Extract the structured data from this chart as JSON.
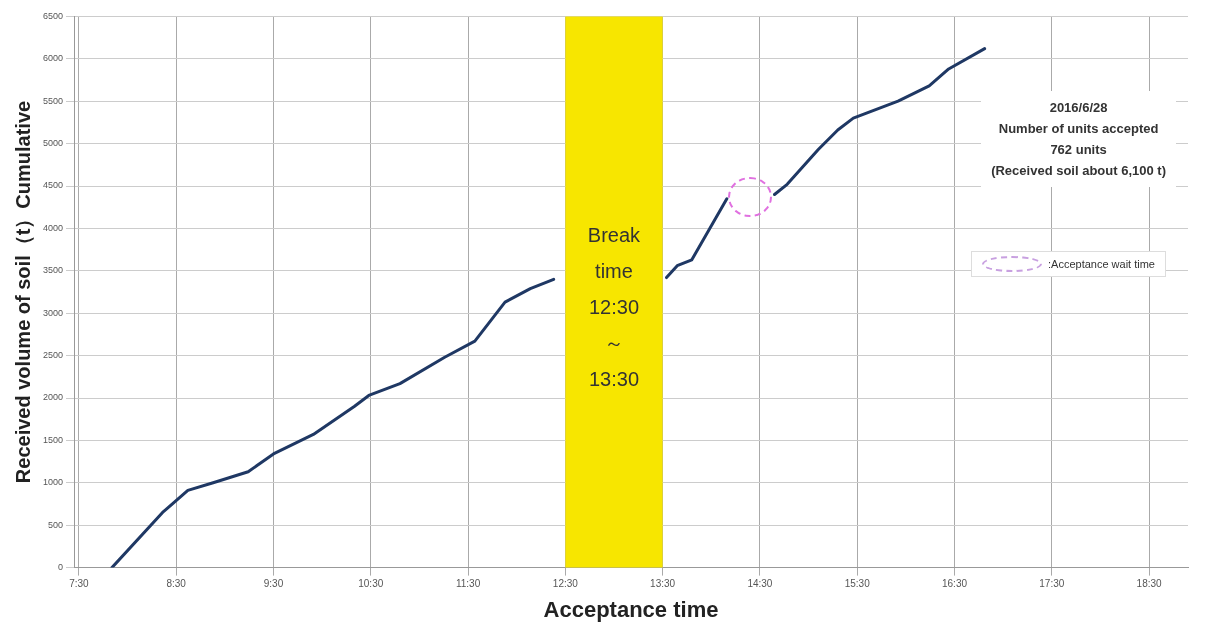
{
  "chart_data": {
    "type": "line",
    "xlabel": "Acceptance time",
    "ylabel": "Received volume of soil（t）Cumulative",
    "x": [
      7.84,
      8.36,
      8.62,
      8.88,
      9.24,
      9.5,
      9.91,
      10.33,
      10.48,
      10.8,
      11.26,
      11.57,
      11.88,
      12.14,
      12.38,
      12.45,
      13.54,
      13.65,
      13.8,
      14.16,
      14.4,
      14.65,
      14.78,
      15.1,
      15.3,
      15.46,
      15.92,
      16.24,
      16.44,
      16.81
    ],
    "series": [
      {
        "color": "#1f3864",
        "values": [
          0,
          650,
          910,
          1000,
          1130,
          1340,
          1570,
          1900,
          2030,
          2170,
          2480,
          2670,
          3130,
          3290,
          3400,
          null,
          3420,
          3560,
          3630,
          4350,
          null,
          4400,
          4520,
          4930,
          5160,
          5300,
          5500,
          5680,
          5880,
          6120
        ]
      }
    ],
    "xlim": [
      7.45,
      18.9
    ],
    "xticks": [
      {
        "value": 7.5,
        "label": "7:30"
      },
      {
        "value": 8.5,
        "label": "8:30"
      },
      {
        "value": 9.5,
        "label": "9:30"
      },
      {
        "value": 10.5,
        "label": "10:30"
      },
      {
        "value": 11.5,
        "label": "11:30"
      },
      {
        "value": 12.5,
        "label": "12:30"
      },
      {
        "value": 13.5,
        "label": "13:30"
      },
      {
        "value": 14.5,
        "label": "14:30"
      },
      {
        "value": 15.5,
        "label": "15:30"
      },
      {
        "value": 16.5,
        "label": "16:30"
      },
      {
        "value": 17.5,
        "label": "17:30"
      },
      {
        "value": 18.5,
        "label": "18:30"
      }
    ],
    "ylim": [
      0,
      6500
    ],
    "yticks": [
      0,
      500,
      1000,
      1500,
      2000,
      2500,
      3000,
      3500,
      4000,
      4500,
      5000,
      5500,
      6000,
      6500
    ],
    "bands": [
      {
        "axis": "x",
        "from": 12.5,
        "to": 13.5,
        "label": "Break time 12:30 ～ 13:30",
        "color": "#f7e600"
      }
    ],
    "annotations": [
      "2016/6/28",
      "Number of units accepted",
      "762 units",
      "(Received soil about  6,100 t)",
      ":Acceptance wait time"
    ],
    "grid": true,
    "marker": "none",
    "line_style": "solid",
    "legend": false
  }
}
